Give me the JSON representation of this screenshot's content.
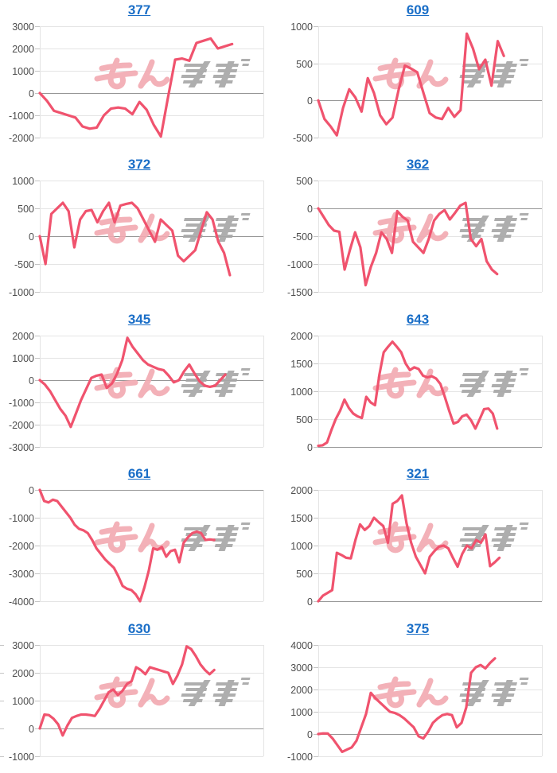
{
  "page": {
    "background": "#ffffff"
  },
  "style": {
    "line_color": "#f0536e",
    "grid_color": "#e4e4e4",
    "zero_line_color": "#969696",
    "tick_dash_color": "#c4c4c4",
    "label_color": "#4d4d4d",
    "title_color": "#1a6ec7",
    "watermark_pink": "#f2a9b1",
    "watermark_gray": "#a8a8a8"
  },
  "watermark": {
    "text": "みんレポ",
    "pink_part": "みん",
    "gray_part": "レポ"
  },
  "chart_data": [
    {
      "type": "line",
      "title": "377",
      "ylim": [
        -2000,
        3000
      ],
      "yticks": [
        3000,
        2000,
        1000,
        0,
        -1000,
        -2000
      ],
      "grid": true,
      "legend": "none",
      "end_frac": 0.86,
      "values": [
        0,
        -350,
        -800,
        -900,
        -1000,
        -1100,
        -1500,
        -1600,
        -1550,
        -1000,
        -700,
        -650,
        -700,
        -950,
        -400,
        -750,
        -1430,
        -1950,
        -200,
        1500,
        1550,
        1450,
        2250,
        2350,
        2450,
        2000,
        2100,
        2200
      ]
    },
    {
      "type": "line",
      "title": "609",
      "ylim": [
        -500,
        1000
      ],
      "yticks": [
        1000,
        500,
        0,
        -500
      ],
      "grid": true,
      "legend": "none",
      "end_frac": 0.83,
      "values": [
        0,
        -250,
        -350,
        -470,
        -100,
        150,
        40,
        -150,
        300,
        100,
        -200,
        -320,
        -230,
        150,
        470,
        430,
        380,
        100,
        -170,
        -230,
        -250,
        -100,
        -220,
        -130,
        900,
        700,
        420,
        550,
        200,
        800,
        600
      ]
    },
    {
      "type": "line",
      "title": "372",
      "ylim": [
        -1000,
        1000
      ],
      "yticks": [
        1000,
        500,
        0,
        -500,
        -1000
      ],
      "grid": true,
      "legend": "none",
      "end_frac": 0.85,
      "values": [
        0,
        -500,
        400,
        500,
        600,
        450,
        -200,
        300,
        450,
        470,
        250,
        450,
        600,
        250,
        550,
        580,
        600,
        500,
        300,
        100,
        -100,
        300,
        200,
        100,
        -350,
        -450,
        -350,
        -250,
        100,
        430,
        300,
        -100,
        -300,
        -700
      ]
    },
    {
      "type": "line",
      "title": "362",
      "ylim": [
        -1500,
        500
      ],
      "yticks": [
        500,
        0,
        -500,
        -1000,
        -1500
      ],
      "grid": true,
      "legend": "none",
      "end_frac": 0.8,
      "values": [
        0,
        -150,
        -300,
        -400,
        -420,
        -1100,
        -750,
        -430,
        -700,
        -1380,
        -1050,
        -800,
        -430,
        -550,
        -800,
        -50,
        -150,
        -220,
        -600,
        -700,
        -800,
        -550,
        -220,
        -100,
        -30,
        -200,
        -80,
        50,
        100,
        -550,
        -680,
        -550,
        -950,
        -1100,
        -1180
      ]
    },
    {
      "type": "line",
      "title": "345",
      "ylim": [
        -3000,
        2000
      ],
      "yticks": [
        2000,
        1000,
        0,
        -1000,
        -2000,
        -3000
      ],
      "grid": true,
      "legend": "none",
      "end_frac": 0.83,
      "values": [
        0,
        -200,
        -500,
        -900,
        -1300,
        -1600,
        -2100,
        -1500,
        -900,
        -400,
        100,
        200,
        250,
        -350,
        -150,
        300,
        900,
        1900,
        1500,
        1200,
        900,
        700,
        600,
        500,
        450,
        200,
        -100,
        0,
        400,
        700,
        300,
        -50,
        -250,
        -300,
        -250,
        0,
        250
      ]
    },
    {
      "type": "line",
      "title": "643",
      "ylim": [
        0,
        2000
      ],
      "yticks": [
        2000,
        1500,
        1000,
        500,
        0
      ],
      "grid": true,
      "legend": "none",
      "end_frac": 0.8,
      "values": [
        20,
        30,
        80,
        300,
        500,
        650,
        850,
        700,
        600,
        550,
        520,
        900,
        800,
        750,
        1300,
        1700,
        1800,
        1890,
        1800,
        1700,
        1500,
        1380,
        1430,
        1400,
        1280,
        1250,
        1270,
        1230,
        1130,
        900,
        650,
        420,
        450,
        550,
        580,
        480,
        330,
        500,
        680,
        690,
        600,
        330
      ]
    },
    {
      "type": "line",
      "title": "661",
      "ylim": [
        -4000,
        0
      ],
      "yticks": [
        0,
        -1000,
        -2000,
        -3000,
        -4000
      ],
      "grid": true,
      "legend": "none",
      "end_frac": 0.78,
      "values": [
        0,
        -400,
        -450,
        -350,
        -400,
        -600,
        -800,
        -1000,
        -1250,
        -1400,
        -1450,
        -1550,
        -1800,
        -2100,
        -2300,
        -2500,
        -2650,
        -2800,
        -3100,
        -3450,
        -3550,
        -3600,
        -3750,
        -4000,
        -3500,
        -2900,
        -2100,
        -2150,
        -2050,
        -2400,
        -2200,
        -2150,
        -2600,
        -1900,
        -1700,
        -1550,
        -1500,
        -1550,
        -1800,
        -1780,
        -1800
      ]
    },
    {
      "type": "line",
      "title": "321",
      "ylim": [
        0,
        2000
      ],
      "yticks": [
        2000,
        1500,
        1000,
        500,
        0
      ],
      "grid": true,
      "legend": "none",
      "end_frac": 0.81,
      "values": [
        0,
        100,
        150,
        200,
        870,
        830,
        780,
        770,
        1100,
        1380,
        1280,
        1350,
        1500,
        1420,
        1350,
        1050,
        1750,
        1800,
        1900,
        1400,
        1050,
        800,
        650,
        500,
        800,
        900,
        980,
        1000,
        950,
        780,
        620,
        850,
        1000,
        950,
        1100,
        1050,
        1200,
        630,
        700,
        780
      ]
    },
    {
      "type": "line",
      "title": "630",
      "ylim": [
        -1000,
        3000
      ],
      "yticks": [
        3000,
        2000,
        1000,
        0,
        -1000
      ],
      "grid": true,
      "legend": "none",
      "end_frac": 0.78,
      "left_edge_ticks": true,
      "values": [
        0,
        500,
        480,
        350,
        150,
        -250,
        100,
        380,
        450,
        500,
        500,
        480,
        450,
        700,
        1000,
        1300,
        1400,
        1200,
        1350,
        1600,
        1700,
        2200,
        2100,
        1950,
        2200,
        2150,
        2100,
        2050,
        2000,
        1600,
        1900,
        2300,
        2950,
        2850,
        2600,
        2300,
        2100,
        1950,
        2100
      ]
    },
    {
      "type": "line",
      "title": "375",
      "ylim": [
        -1000,
        4000
      ],
      "yticks": [
        4000,
        3000,
        2000,
        1000,
        0,
        -1000
      ],
      "grid": true,
      "legend": "none",
      "end_frac": 0.79,
      "values": [
        0,
        30,
        20,
        -200,
        -500,
        -800,
        -700,
        -600,
        -300,
        300,
        900,
        1850,
        1600,
        1400,
        1200,
        1000,
        950,
        850,
        700,
        500,
        300,
        -100,
        -200,
        100,
        500,
        700,
        850,
        900,
        850,
        300,
        500,
        1200,
        2750,
        3000,
        3100,
        2950,
        3200,
        3400
      ]
    }
  ]
}
